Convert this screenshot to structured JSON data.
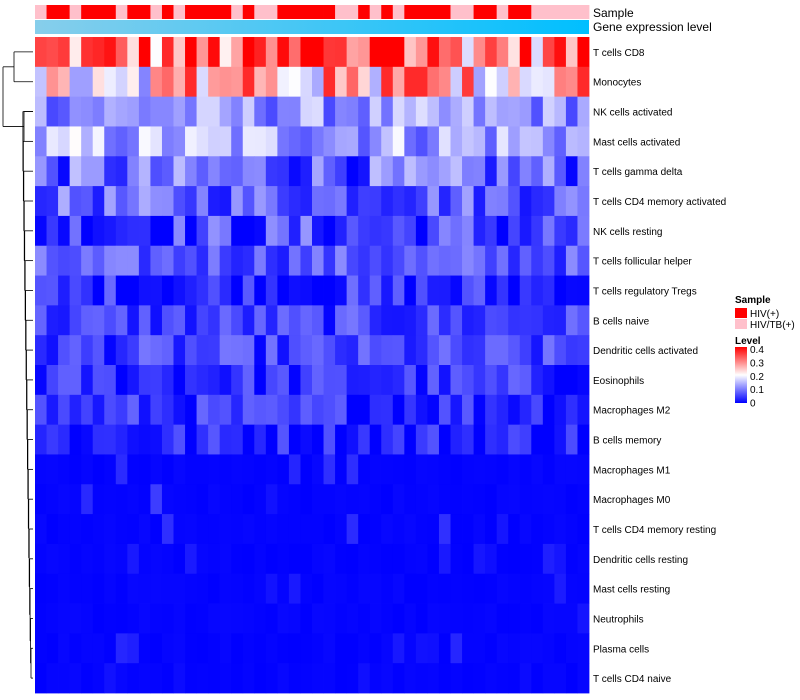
{
  "chart_data": {
    "type": "heatmap",
    "annotation_labels": [
      "Sample",
      "Gene expression level"
    ],
    "rows": [
      "T cells CD8",
      "Monocytes",
      "NK cells activated",
      "Mast cells activated",
      "T cells gamma delta",
      "T cells CD4 memory activated",
      "NK cells resting",
      "T cells follicular helper",
      "T cells regulatory  Tregs",
      "B cells naive",
      "Dendritic cells activated",
      "Eosinophils",
      "Macrophages M2",
      "B cells memory",
      "Macrophages M1",
      "Macrophages M0",
      "T cells CD4 memory resting",
      "Dendritic cells resting",
      "Mast cells resting",
      "Neutrophils",
      "Plasma cells",
      "T cells CD4 naive"
    ],
    "sample_groups": "PHHPHHHPHHPHPHHHHPHPPHHHHHPPHPHPHHHHPPHHPHHPPPPP",
    "row_means": [
      0.32,
      0.25,
      0.12,
      0.14,
      0.08,
      0.08,
      0.05,
      0.07,
      0.03,
      0.05,
      0.05,
      0.04,
      0.04,
      0.03,
      0.02,
      0.02,
      0.01,
      0.01,
      0.01,
      0.01,
      0.01,
      0.01
    ],
    "row_spread": [
      0.09,
      0.09,
      0.04,
      0.05,
      0.05,
      0.04,
      0.05,
      0.03,
      0.04,
      0.03,
      0.03,
      0.03,
      0.03,
      0.03,
      0.02,
      0.02,
      0.02,
      0.01,
      0.01,
      0.01,
      0.02,
      0.02
    ],
    "legend_sample": {
      "title": "Sample",
      "entries": [
        {
          "label": "HIV(+)",
          "color": "#ff0000"
        },
        {
          "label": "HIV/TB(+)",
          "color": "#ffc0cb"
        }
      ]
    },
    "legend_level": {
      "title": "Level",
      "ticks": [
        "0.4",
        "0.3",
        "0.2",
        "0.1",
        "0"
      ],
      "tick_values": [
        0.4,
        0.3,
        0.2,
        0.1,
        0
      ],
      "range": [
        0,
        0.42
      ],
      "colors": {
        "low": "#0000ff",
        "mid": "#ffffff",
        "high": "#ff0000"
      }
    },
    "gene_expression_gradient": [
      "#87ceeb",
      "#00bfff"
    ]
  }
}
